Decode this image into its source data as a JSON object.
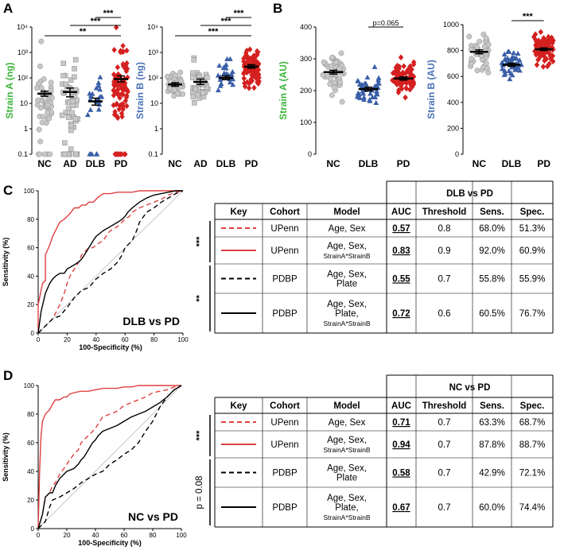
{
  "panels": {
    "A": "A",
    "B": "B",
    "C": "C",
    "D": "D"
  },
  "colors": {
    "NC": "#c8c8c8",
    "AD": "#c8c8c8",
    "DLB": "#3a5fa8",
    "PD": "#d42020",
    "strainA": "#3cb43c",
    "strainB": "#4a72b8",
    "upenn": "#e04040",
    "pdbp": "#000000"
  },
  "chart_data": [
    {
      "type": "scatter",
      "title": "",
      "ylabel": "Strain A (ng)",
      "yscale": "log",
      "ylim": [
        0.1,
        10000
      ],
      "yticks": [
        "0.1",
        "1",
        "10",
        "10²",
        "10³",
        "10⁴"
      ],
      "categories": [
        "NC",
        "AD",
        "DLB",
        "PD"
      ],
      "series": [
        {
          "name": "NC",
          "mean": 24,
          "sem_low": 19,
          "sem_high": 30,
          "n": 45,
          "center_log": 1.1,
          "spread_log": 0.6,
          "n_floor": 5
        },
        {
          "name": "AD",
          "mean": 28,
          "sem_low": 18,
          "sem_high": 40,
          "n": 45,
          "center_log": 1.0,
          "spread_log": 0.9,
          "n_floor": 7
        },
        {
          "name": "DLB",
          "mean": 12,
          "sem_low": 8.5,
          "sem_high": 16,
          "n": 20,
          "center_log": 1.2,
          "spread_log": 0.45,
          "n_floor": 6
        },
        {
          "name": "PD",
          "mean": 90,
          "sem_low": 70,
          "sem_high": 120,
          "n": 80,
          "center_log": 1.6,
          "spread_log": 0.8,
          "n_floor": 10
        }
      ],
      "significance": [
        {
          "from": "DLB",
          "to": "PD",
          "label": "***"
        },
        {
          "from": "AD",
          "to": "PD",
          "label": "***"
        },
        {
          "from": "NC",
          "to": "PD",
          "label": "**"
        }
      ]
    },
    {
      "type": "scatter",
      "ylabel": "Strain B (ng)",
      "yscale": "log",
      "ylim": [
        0.1,
        10000
      ],
      "yticks": [
        "0.1",
        "1",
        "10",
        "10²",
        "10³",
        "10⁴"
      ],
      "categories": [
        "NC",
        "AD",
        "DLB",
        "PD"
      ],
      "series": [
        {
          "name": "NC",
          "mean": 55,
          "sem_low": 47,
          "sem_high": 65,
          "n": 35,
          "center_log": 1.75,
          "spread_log": 0.3,
          "n_floor": 0
        },
        {
          "name": "AD",
          "mean": 70,
          "sem_low": 55,
          "sem_high": 90,
          "n": 35,
          "center_log": 1.85,
          "spread_log": 0.35,
          "n_floor": 0
        },
        {
          "name": "DLB",
          "mean": 100,
          "sem_low": 85,
          "sem_high": 120,
          "n": 25,
          "center_log": 2.0,
          "spread_log": 0.35,
          "n_floor": 0
        },
        {
          "name": "PD",
          "mean": 280,
          "sem_low": 240,
          "sem_high": 330,
          "n": 80,
          "center_log": 2.45,
          "spread_log": 0.35,
          "n_floor": 0
        }
      ],
      "significance": [
        {
          "from": "DLB",
          "to": "PD",
          "label": "***"
        },
        {
          "from": "AD",
          "to": "PD",
          "label": "***"
        },
        {
          "from": "NC",
          "to": "PD",
          "label": "***"
        }
      ]
    },
    {
      "type": "scatter",
      "ylabel": "Strain A (AU)",
      "yscale": "linear",
      "ylim": [
        0,
        400
      ],
      "yticks": [
        "0",
        "100",
        "200",
        "300",
        "400"
      ],
      "categories": [
        "NC",
        "DLB",
        "PD"
      ],
      "series": [
        {
          "name": "NC",
          "mean": 258,
          "sem_low": 252,
          "sem_high": 264,
          "n": 45,
          "center": 258,
          "spread": 30
        },
        {
          "name": "DLB",
          "mean": 205,
          "sem_low": 199,
          "sem_high": 211,
          "n": 45,
          "center": 205,
          "spread": 22
        },
        {
          "name": "PD",
          "mean": 238,
          "sem_low": 233,
          "sem_high": 243,
          "n": 90,
          "center": 238,
          "spread": 25
        }
      ],
      "significance": [
        {
          "from": "DLB",
          "to": "PD",
          "label": "p=0.065"
        }
      ]
    },
    {
      "type": "scatter",
      "ylabel": "Strain B (AU)",
      "yscale": "linear",
      "ylim": [
        0,
        1000
      ],
      "yticks": [
        "0",
        "200",
        "400",
        "600",
        "800",
        "1000"
      ],
      "categories": [
        "NC",
        "DLB",
        "PD"
      ],
      "series": [
        {
          "name": "NC",
          "mean": 790,
          "sem_low": 775,
          "sem_high": 805,
          "n": 40,
          "center": 790,
          "spread": 70
        },
        {
          "name": "DLB",
          "mean": 690,
          "sem_low": 678,
          "sem_high": 702,
          "n": 45,
          "center": 690,
          "spread": 55
        },
        {
          "name": "PD",
          "mean": 810,
          "sem_low": 800,
          "sem_high": 820,
          "n": 90,
          "center": 810,
          "spread": 55
        }
      ],
      "significance": [
        {
          "from": "DLB",
          "to": "PD",
          "label": "***"
        }
      ]
    },
    {
      "type": "line",
      "title": "DLB vs PD",
      "xlabel": "100-Specificity (%)",
      "ylabel": "Sensitivity (%)",
      "xlim": [
        0,
        100
      ],
      "ylim": [
        0,
        100
      ],
      "ticks": [
        "0",
        "20",
        "40",
        "60",
        "80",
        "100"
      ],
      "series": [
        {
          "name": "UPenn Age, Sex",
          "style": "red-dashed",
          "x": [
            0,
            5,
            10,
            15,
            18,
            20,
            22,
            25,
            28,
            30,
            33,
            35,
            38,
            40,
            45,
            48,
            50,
            55,
            58,
            60,
            63,
            65,
            70,
            75,
            80,
            85,
            90,
            95,
            100
          ],
          "y": [
            0,
            5,
            10,
            20,
            28,
            35,
            40,
            45,
            50,
            55,
            58,
            60,
            60,
            62,
            65,
            70,
            72,
            75,
            78,
            80,
            82,
            85,
            88,
            90,
            92,
            94,
            97,
            99,
            100
          ]
        },
        {
          "name": "UPenn Age, Sex, StrainA*StrainB",
          "style": "red-solid",
          "x": [
            0,
            0,
            3,
            5,
            5,
            8,
            10,
            12,
            15,
            18,
            20,
            22,
            25,
            28,
            30,
            33,
            35,
            38,
            40,
            42,
            45,
            50,
            55,
            58,
            60,
            65,
            70,
            75,
            80,
            85,
            90,
            95,
            100
          ],
          "y": [
            0,
            20,
            35,
            37,
            55,
            62,
            68,
            72,
            78,
            80,
            82,
            84,
            88,
            88,
            90,
            90,
            92,
            92,
            94,
            96,
            98,
            98,
            99,
            99,
            99,
            99,
            100,
            100,
            100,
            100,
            100,
            100,
            100
          ]
        },
        {
          "name": "PDBP Age, Sex, Plate",
          "style": "black-dashed",
          "x": [
            0,
            5,
            8,
            10,
            15,
            20,
            25,
            30,
            35,
            40,
            45,
            50,
            55,
            58,
            60,
            65,
            68,
            70,
            75,
            80,
            85,
            90,
            95,
            100
          ],
          "y": [
            0,
            5,
            8,
            10,
            12,
            18,
            25,
            30,
            32,
            38,
            42,
            45,
            50,
            55,
            60,
            65,
            72,
            78,
            85,
            88,
            92,
            95,
            98,
            100
          ]
        },
        {
          "name": "PDBP Age, Sex, Plate, StrainA*StrainB",
          "style": "black-solid",
          "x": [
            0,
            2,
            5,
            8,
            10,
            12,
            15,
            18,
            20,
            25,
            28,
            30,
            32,
            35,
            38,
            40,
            45,
            50,
            55,
            58,
            60,
            62,
            65,
            70,
            75,
            80,
            85,
            90,
            95,
            100
          ],
          "y": [
            0,
            15,
            28,
            35,
            38,
            40,
            42,
            42,
            45,
            48,
            50,
            52,
            55,
            60,
            65,
            68,
            72,
            75,
            78,
            80,
            82,
            85,
            88,
            92,
            95,
            97,
            98,
            99,
            100,
            100
          ]
        }
      ],
      "significance": [
        {
          "rows": "UPenn",
          "label": "***"
        },
        {
          "rows": "PDBP",
          "label": "**"
        }
      ]
    },
    {
      "type": "line",
      "title": "NC vs PD",
      "xlabel": "100-Specificity (%)",
      "ylabel": "Sensitivity (%)",
      "xlim": [
        0,
        100
      ],
      "ylim": [
        0,
        100
      ],
      "ticks": [
        "0",
        "20",
        "40",
        "60",
        "80",
        "100"
      ],
      "series": [
        {
          "name": "UPenn Age, Sex",
          "style": "red-dashed",
          "x": [
            0,
            3,
            5,
            8,
            10,
            12,
            15,
            18,
            20,
            22,
            25,
            28,
            30,
            35,
            38,
            40,
            45,
            50,
            55,
            60,
            65,
            70,
            75,
            80,
            85,
            90,
            95,
            100
          ],
          "y": [
            0,
            10,
            22,
            25,
            30,
            32,
            38,
            42,
            45,
            48,
            52,
            55,
            60,
            65,
            68,
            70,
            78,
            80,
            82,
            86,
            88,
            90,
            92,
            95,
            96,
            97,
            99,
            100
          ]
        },
        {
          "name": "UPenn Age, Sex, StrainA*StrainB",
          "style": "red-solid",
          "x": [
            0,
            1,
            2,
            3,
            5,
            8,
            10,
            12,
            15,
            18,
            20,
            22,
            25,
            30,
            35,
            40,
            45,
            50,
            55,
            60,
            65,
            70,
            80,
            90,
            100
          ],
          "y": [
            0,
            40,
            65,
            75,
            80,
            83,
            87,
            90,
            90,
            92,
            92,
            94,
            95,
            96,
            96,
            97,
            98,
            98,
            98,
            99,
            99,
            100,
            100,
            100,
            100
          ]
        },
        {
          "name": "PDBP Age, Sex, Plate",
          "style": "black-dashed",
          "x": [
            0,
            5,
            8,
            10,
            15,
            20,
            25,
            30,
            35,
            40,
            45,
            50,
            55,
            60,
            65,
            70,
            75,
            80,
            85,
            90,
            95,
            100
          ],
          "y": [
            0,
            5,
            15,
            20,
            22,
            25,
            28,
            32,
            35,
            38,
            40,
            45,
            48,
            52,
            55,
            60,
            68,
            75,
            85,
            92,
            97,
            100
          ]
        },
        {
          "name": "PDBP Age, Sex, Plate, StrainA*StrainB",
          "style": "black-solid",
          "x": [
            0,
            3,
            5,
            8,
            10,
            12,
            15,
            18,
            20,
            25,
            28,
            30,
            32,
            35,
            38,
            40,
            42,
            45,
            50,
            55,
            60,
            65,
            70,
            75,
            80,
            85,
            90,
            95,
            100
          ],
          "y": [
            0,
            10,
            22,
            25,
            25,
            30,
            35,
            38,
            40,
            42,
            45,
            48,
            50,
            55,
            60,
            62,
            65,
            68,
            70,
            72,
            75,
            78,
            80,
            82,
            85,
            88,
            92,
            97,
            100
          ]
        }
      ],
      "significance": [
        {
          "rows": "UPenn",
          "label": "***"
        },
        {
          "rows": "PDBP",
          "label": "p = 0.08"
        }
      ]
    }
  ],
  "tables": {
    "C": {
      "title": "DLB vs PD",
      "headers": [
        "Key",
        "Cohort",
        "Model",
        "AUC",
        "Threshold",
        "Sens.",
        "Spec."
      ],
      "rows": [
        {
          "cohort": "UPenn",
          "model": [
            "Age, Sex"
          ],
          "auc": "0.57",
          "threshold": "0.8",
          "sens": "68.0%",
          "spec": "51.3%"
        },
        {
          "cohort": "UPenn",
          "model": [
            "Age, Sex,",
            "StrainA*StrainB"
          ],
          "auc": "0.83",
          "threshold": "0.9",
          "sens": "92.0%",
          "spec": "60.9%"
        },
        {
          "cohort": "PDBP",
          "model": [
            "Age, Sex,",
            "Plate"
          ],
          "auc": "0.55",
          "threshold": "0.7",
          "sens": "55.8%",
          "spec": "55.9%"
        },
        {
          "cohort": "PDBP",
          "model": [
            "Age, Sex,",
            "Plate,",
            "StrainA*StrainB"
          ],
          "auc": "0.72",
          "threshold": "0.6",
          "sens": "60.5%",
          "spec": "76.7%"
        }
      ]
    },
    "D": {
      "title": "NC vs PD",
      "headers": [
        "Key",
        "Cohort",
        "Model",
        "AUC",
        "Threshold",
        "Sens.",
        "Spec."
      ],
      "rows": [
        {
          "cohort": "UPenn",
          "model": [
            "Age, Sex"
          ],
          "auc": "0.71",
          "threshold": "0.7",
          "sens": "63.3%",
          "spec": "68.7%"
        },
        {
          "cohort": "UPenn",
          "model": [
            "Age, Sex,",
            "StrainA*StrainB"
          ],
          "auc": "0.94",
          "threshold": "0.7",
          "sens": "87.8%",
          "spec": "88.7%"
        },
        {
          "cohort": "PDBP",
          "model": [
            "Age, Sex,",
            "Plate"
          ],
          "auc": "0.58",
          "threshold": "0.7",
          "sens": "42.9%",
          "spec": "72.1%"
        },
        {
          "cohort": "PDBP",
          "model": [
            "Age, Sex,",
            "Plate,",
            "StrainA*StrainB"
          ],
          "auc": "0.67",
          "threshold": "0.7",
          "sens": "60.0%",
          "spec": "74.4%"
        }
      ]
    }
  }
}
